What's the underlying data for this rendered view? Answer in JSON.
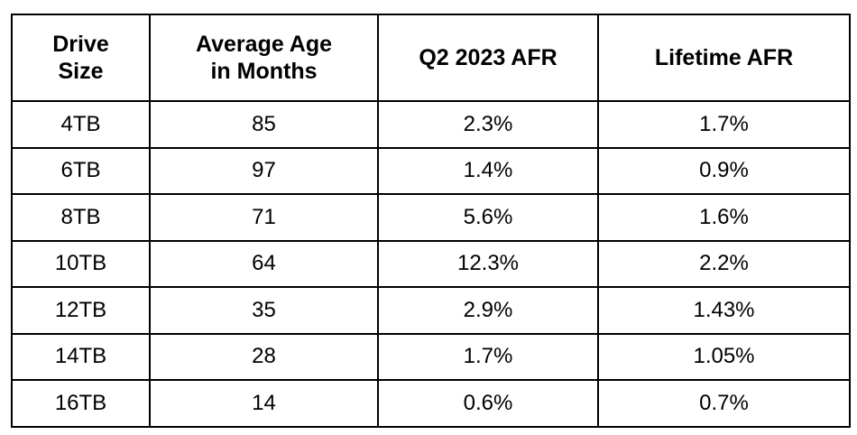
{
  "table": {
    "headers": [
      {
        "line1": "Drive",
        "line2": "Size"
      },
      {
        "line1": "Average Age",
        "line2": "in Months"
      },
      {
        "line1": "Q2 2023 AFR",
        "line2": ""
      },
      {
        "line1": "Lifetime AFR",
        "line2": ""
      }
    ],
    "rows": [
      [
        "4TB",
        "85",
        "2.3%",
        "1.7%"
      ],
      [
        "6TB",
        "97",
        "1.4%",
        "0.9%"
      ],
      [
        "8TB",
        "71",
        "5.6%",
        "1.6%"
      ],
      [
        "10TB",
        "64",
        "12.3%",
        "2.2%"
      ],
      [
        "12TB",
        "35",
        "2.9%",
        "1.43%"
      ],
      [
        "14TB",
        "28",
        "1.7%",
        "1.05%"
      ],
      [
        "16TB",
        "14",
        "0.6%",
        "0.7%"
      ]
    ]
  }
}
